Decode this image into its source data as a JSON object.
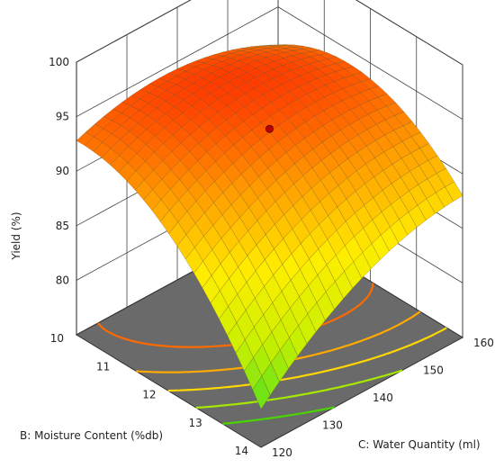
{
  "chart_data": {
    "type": "surface",
    "zlabel": "Yield (%)",
    "xlabel": "B: Moisture Content (%db)",
    "ylabel": "C: Water Quantity  (ml)",
    "z_ticks": [
      "80",
      "85",
      "90",
      "95",
      "100"
    ],
    "x_ticks": [
      "10",
      "11",
      "12",
      "13",
      "14"
    ],
    "y_ticks": [
      "120",
      "130",
      "140",
      "150",
      "160"
    ],
    "xlim": [
      10,
      14
    ],
    "ylim": [
      120,
      160
    ],
    "zlim": [
      75,
      100
    ],
    "grid": true,
    "corner_values": [
      {
        "moisture": 10,
        "water": 120,
        "yield": 92.8
      },
      {
        "moisture": 14,
        "water": 120,
        "yield": 78.5
      },
      {
        "moisture": 14,
        "water": 160,
        "yield": 88.0
      },
      {
        "moisture": 10,
        "water": 160,
        "yield": 91.5
      }
    ],
    "peak": {
      "moisture": 11.2,
      "water": 128,
      "yield": 96.0
    },
    "design_point": {
      "moisture": 12,
      "water": 140,
      "yield": 94.0
    },
    "contour_colors": [
      "#ff6a00",
      "#ffaa00",
      "#ffd800",
      "#a6e800",
      "#4ad400"
    ],
    "surface_colormap": [
      "#44dd22",
      "#c8f000",
      "#ffee00",
      "#ff9900",
      "#ff2200"
    ]
  }
}
